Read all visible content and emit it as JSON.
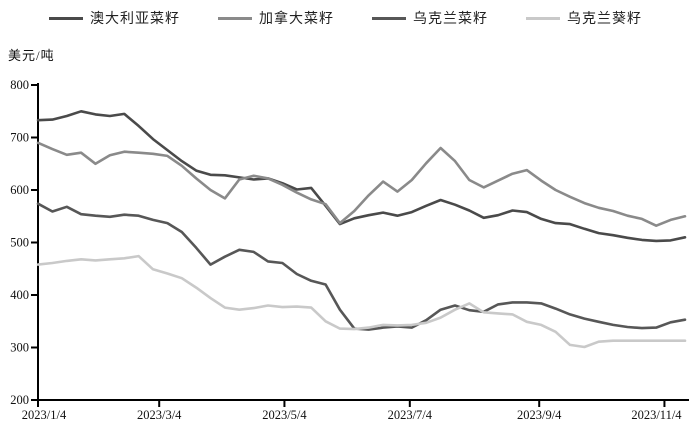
{
  "unit_label": "美元/吨",
  "legend": [
    {
      "key": "australian-rapeseed",
      "label": "澳大利亚菜籽",
      "color": "#4a4a4a"
    },
    {
      "key": "canadian-rapeseed",
      "label": "加拿大菜籽",
      "color": "#8a8a8a"
    },
    {
      "key": "ukrainian-rapeseed",
      "label": "乌克兰菜籽",
      "color": "#575757"
    },
    {
      "key": "ukrainian-sunflower",
      "label": "乌克兰葵籽",
      "color": "#c9c9c9"
    }
  ],
  "axis_color": "#000000",
  "label_color": "#111111",
  "chart_data": {
    "type": "line",
    "title": "",
    "ylabel": "美元/吨",
    "xlabel": "",
    "grid": false,
    "legend_position": "top",
    "ylim": [
      200,
      800
    ],
    "yticks": [
      200,
      300,
      400,
      500,
      600,
      700,
      800
    ],
    "xtick_labels": [
      "2023/1/4",
      "2023/3/4",
      "2023/5/4",
      "2023/7/4",
      "2023/9/4",
      "2023/11/4"
    ],
    "xtick_week_positions": [
      0,
      8.43,
      17.14,
      25.86,
      34.86,
      43.57
    ],
    "weeks_total": 45,
    "x_frequency": "weekly",
    "series": [
      {
        "name": "澳大利亚菜籽",
        "key": "australian-rapeseed",
        "values": [
          733,
          734,
          741,
          750,
          744,
          741,
          745,
          722,
          697,
          676,
          655,
          637,
          629,
          628,
          624,
          620,
          622,
          613,
          601,
          604,
          570,
          535,
          546,
          552,
          557,
          551,
          558,
          570,
          581,
          572,
          561,
          547,
          552,
          561,
          558,
          545,
          537,
          535,
          526,
          518,
          514,
          509,
          505,
          503,
          504,
          510
        ]
      },
      {
        "name": "加拿大菜籽",
        "key": "canadian-rapeseed",
        "values": [
          690,
          678,
          667,
          671,
          650,
          666,
          673,
          671,
          669,
          665,
          646,
          622,
          600,
          584,
          620,
          627,
          622,
          610,
          595,
          582,
          573,
          537,
          560,
          590,
          616,
          597,
          619,
          651,
          680,
          655,
          619,
          605,
          618,
          631,
          638,
          618,
          600,
          587,
          575,
          566,
          560,
          551,
          545,
          532,
          543,
          550
        ]
      },
      {
        "name": "乌克兰菜籽",
        "key": "ukrainian-rapeseed",
        "values": [
          574,
          559,
          568,
          554,
          551,
          549,
          553,
          551,
          543,
          537,
          520,
          490,
          458,
          473,
          486,
          482,
          464,
          461,
          440,
          427,
          420,
          372,
          336,
          334,
          338,
          340,
          338,
          352,
          372,
          380,
          371,
          368,
          382,
          386,
          386,
          384,
          374,
          363,
          355,
          349,
          343,
          339,
          337,
          338,
          348,
          353
        ]
      },
      {
        "name": "乌克兰葵籽",
        "key": "ukrainian-sunflower",
        "values": [
          458,
          461,
          465,
          468,
          466,
          468,
          470,
          474,
          449,
          441,
          432,
          414,
          394,
          376,
          372,
          375,
          380,
          377,
          378,
          376,
          350,
          336,
          335,
          338,
          343,
          342,
          343,
          347,
          357,
          372,
          384,
          367,
          365,
          363,
          349,
          343,
          330,
          305,
          301,
          311,
          313,
          313,
          313,
          313,
          313,
          313
        ]
      }
    ]
  }
}
